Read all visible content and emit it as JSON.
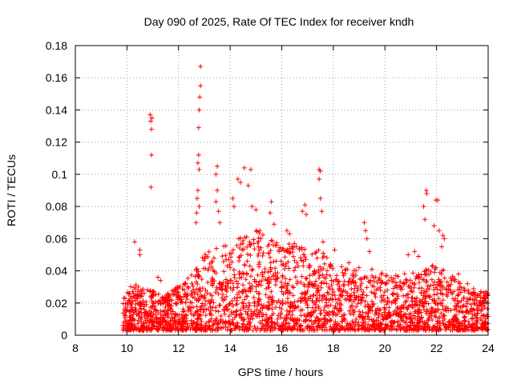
{
  "chart_data": {
    "type": "scatter",
    "title": "Day 090 of 2025, Rate Of TEC Index for receiver kndh",
    "xlabel": "GPS time / hours",
    "ylabel": "ROTI / TECUs",
    "xlim": [
      8,
      24
    ],
    "ylim": [
      0,
      0.18
    ],
    "xticks": [
      8,
      10,
      12,
      14,
      16,
      18,
      20,
      22,
      24
    ],
    "xtick_labels": [
      "8",
      "10",
      "12",
      "14",
      "16",
      "18",
      "20",
      "22",
      "24"
    ],
    "yticks": [
      0,
      0.02,
      0.04,
      0.06,
      0.08,
      0.1,
      0.12,
      0.14,
      0.16,
      0.18
    ],
    "ytick_labels": [
      "0",
      "0.02",
      "0.04",
      "0.06",
      "0.08",
      "0.1",
      "0.12",
      "0.14",
      "0.16",
      "0.18"
    ],
    "grid": true,
    "marker": "+",
    "marker_color": "#ff0000",
    "data_range_x": [
      9.85,
      24
    ],
    "points": [
      [
        10.3,
        0.058
      ],
      [
        10.5,
        0.053
      ],
      [
        10.5,
        0.05
      ],
      [
        10.9,
        0.137
      ],
      [
        10.92,
        0.133
      ],
      [
        10.95,
        0.128
      ],
      [
        10.97,
        0.135
      ],
      [
        10.95,
        0.112
      ],
      [
        10.93,
        0.092
      ],
      [
        11.2,
        0.036
      ],
      [
        11.3,
        0.034
      ],
      [
        12.85,
        0.167
      ],
      [
        12.85,
        0.155
      ],
      [
        12.82,
        0.148
      ],
      [
        12.8,
        0.14
      ],
      [
        12.78,
        0.129
      ],
      [
        12.78,
        0.112
      ],
      [
        12.75,
        0.107
      ],
      [
        12.8,
        0.103
      ],
      [
        12.75,
        0.09
      ],
      [
        12.72,
        0.085
      ],
      [
        12.8,
        0.08
      ],
      [
        12.7,
        0.076
      ],
      [
        12.68,
        0.07
      ],
      [
        13.5,
        0.105
      ],
      [
        13.45,
        0.1
      ],
      [
        13.5,
        0.09
      ],
      [
        13.45,
        0.083
      ],
      [
        13.55,
        0.077
      ],
      [
        13.6,
        0.07
      ],
      [
        14.1,
        0.085
      ],
      [
        14.15,
        0.08
      ],
      [
        14.3,
        0.097
      ],
      [
        14.4,
        0.095
      ],
      [
        14.55,
        0.104
      ],
      [
        14.8,
        0.103
      ],
      [
        14.7,
        0.093
      ],
      [
        14.85,
        0.08
      ],
      [
        15.0,
        0.078
      ],
      [
        15.15,
        0.065
      ],
      [
        15.6,
        0.083
      ],
      [
        15.55,
        0.076
      ],
      [
        15.7,
        0.069
      ],
      [
        16.2,
        0.065
      ],
      [
        16.3,
        0.063
      ],
      [
        16.9,
        0.081
      ],
      [
        16.8,
        0.077
      ],
      [
        16.95,
        0.075
      ],
      [
        17.45,
        0.103
      ],
      [
        17.5,
        0.102
      ],
      [
        17.45,
        0.097
      ],
      [
        17.5,
        0.085
      ],
      [
        17.55,
        0.077
      ],
      [
        17.6,
        0.058
      ],
      [
        18.05,
        0.053
      ],
      [
        18.6,
        0.045
      ],
      [
        19.2,
        0.07
      ],
      [
        19.25,
        0.065
      ],
      [
        19.3,
        0.06
      ],
      [
        19.4,
        0.052
      ],
      [
        20.9,
        0.05
      ],
      [
        21.15,
        0.052
      ],
      [
        21.3,
        0.049
      ],
      [
        21.5,
        0.08
      ],
      [
        21.55,
        0.072
      ],
      [
        21.6,
        0.09
      ],
      [
        21.62,
        0.088
      ],
      [
        21.98,
        0.084
      ],
      [
        22.05,
        0.084
      ],
      [
        21.9,
        0.068
      ],
      [
        22.1,
        0.065
      ],
      [
        22.25,
        0.062
      ],
      [
        22.3,
        0.06
      ],
      [
        22.2,
        0.055
      ],
      [
        22.85,
        0.038
      ],
      [
        23.2,
        0.032
      ]
    ],
    "envelope": [
      [
        9.9,
        0.02
      ],
      [
        10.2,
        0.03
      ],
      [
        10.5,
        0.028
      ],
      [
        11.0,
        0.025
      ],
      [
        11.5,
        0.022
      ],
      [
        12.0,
        0.028
      ],
      [
        12.5,
        0.035
      ],
      [
        13.0,
        0.048
      ],
      [
        13.5,
        0.052
      ],
      [
        14.0,
        0.055
      ],
      [
        14.5,
        0.058
      ],
      [
        15.0,
        0.062
      ],
      [
        15.5,
        0.058
      ],
      [
        16.0,
        0.055
      ],
      [
        16.5,
        0.055
      ],
      [
        17.0,
        0.05
      ],
      [
        17.5,
        0.05
      ],
      [
        18.0,
        0.045
      ],
      [
        18.5,
        0.042
      ],
      [
        19.0,
        0.04
      ],
      [
        19.5,
        0.038
      ],
      [
        20.0,
        0.035
      ],
      [
        20.5,
        0.034
      ],
      [
        21.0,
        0.038
      ],
      [
        21.5,
        0.038
      ],
      [
        22.0,
        0.042
      ],
      [
        22.5,
        0.036
      ],
      [
        23.0,
        0.028
      ],
      [
        23.5,
        0.026
      ],
      [
        24.0,
        0.024
      ]
    ],
    "background_density": 2600
  }
}
